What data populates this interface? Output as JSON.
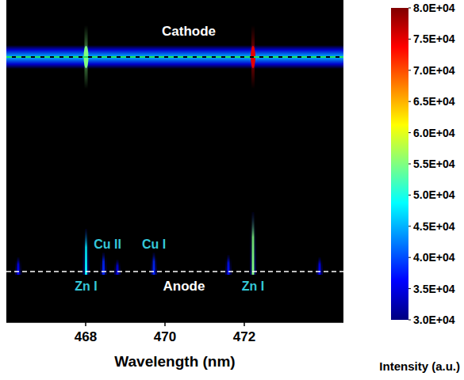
{
  "chart_data": {
    "type": "spectral_image",
    "xlabel": "Wavelength (nm)",
    "xlim": [
      466.0,
      474.5
    ],
    "xticks": [
      468,
      470,
      472
    ],
    "cathode": {
      "label": "Cathode",
      "band_intensity": 45000,
      "lines": [
        {
          "x": 468.01,
          "intensity": 55000
        },
        {
          "x": 472.22,
          "intensity": 75000
        }
      ]
    },
    "anode": {
      "label": "Anode",
      "lines": [
        {
          "x": 466.3,
          "intensity": 36000
        },
        {
          "x": 468.01,
          "intensity": 48000
        },
        {
          "x": 468.45,
          "intensity": 38000
        },
        {
          "x": 468.8,
          "intensity": 35000
        },
        {
          "x": 469.72,
          "intensity": 38000
        },
        {
          "x": 471.6,
          "intensity": 37000
        },
        {
          "x": 472.22,
          "intensity": 55000
        },
        {
          "x": 473.9,
          "intensity": 36000
        }
      ]
    },
    "annotations": [
      {
        "text": "Zn I",
        "x": 468.01,
        "position": "below"
      },
      {
        "text": "Cu II",
        "x": 468.55,
        "position": "above"
      },
      {
        "text": "Cu I",
        "x": 469.72,
        "position": "above"
      },
      {
        "text": "Zn I",
        "x": 472.22,
        "position": "below"
      }
    ],
    "colorbar": {
      "label": "Intensity (a.u.)",
      "range": [
        30000,
        80000
      ],
      "ticks": [
        {
          "value": 30000,
          "label": "3.0E+04"
        },
        {
          "value": 35000,
          "label": "3.5E+04"
        },
        {
          "value": 40000,
          "label": "4.0E+04"
        },
        {
          "value": 45000,
          "label": "4.5E+04"
        },
        {
          "value": 50000,
          "label": "5.0E+04"
        },
        {
          "value": 55000,
          "label": "5.5E+04"
        },
        {
          "value": 60000,
          "label": "6.0E+04"
        },
        {
          "value": 65000,
          "label": "6.5E+04"
        },
        {
          "value": 70000,
          "label": "7.0E+04"
        },
        {
          "value": 75000,
          "label": "7.5E+04"
        },
        {
          "value": 80000,
          "label": "8.0E+04"
        }
      ]
    }
  }
}
